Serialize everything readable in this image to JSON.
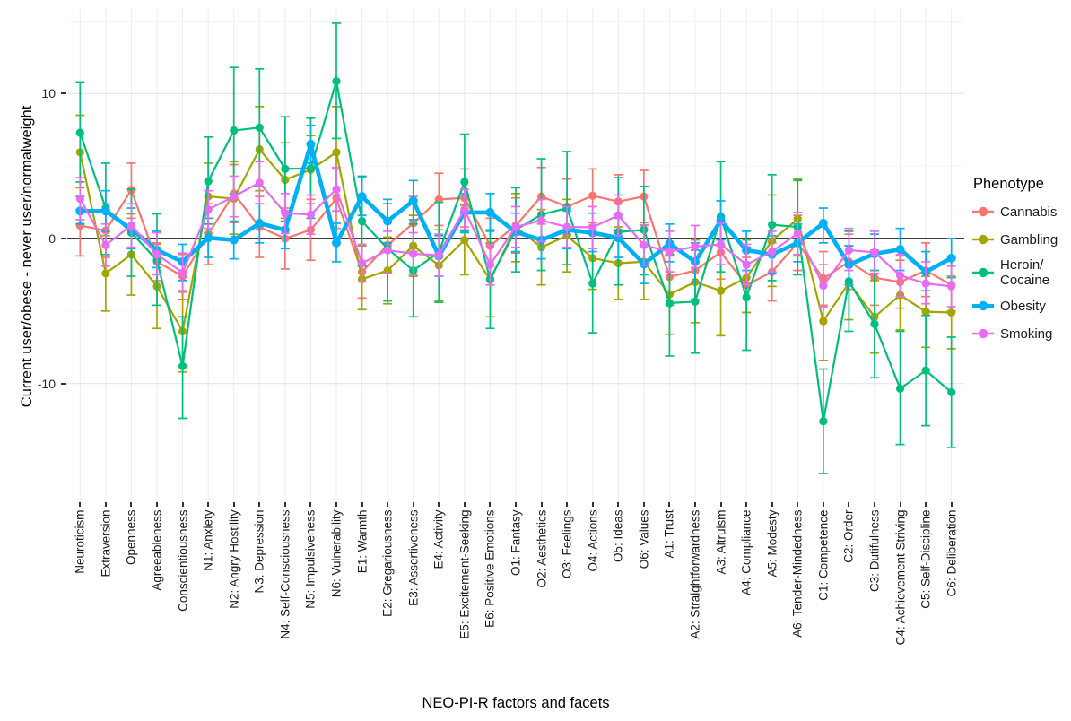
{
  "figure": {
    "y_axis": {
      "title": "Current user/obese - never user/normalweight",
      "ticks": [
        10,
        0,
        -10
      ],
      "minor_gridlines": [
        15,
        5,
        -5,
        -15
      ],
      "range": [
        -18.2,
        15.8
      ]
    },
    "x_axis": {
      "title": "NEO-PI-R factors and facets"
    },
    "legend": {
      "title": "Phenotype"
    },
    "zero_line_color": "#000000"
  },
  "chart_data": {
    "type": "line",
    "error_bars": true,
    "title": "",
    "xlabel": "NEO-PI-R factors and facets",
    "ylabel": "Current user/obese - never user/normalweight",
    "ylim": [
      -18.2,
      15.8
    ],
    "grid": true,
    "legend_position": "right",
    "categories": [
      "Neuroticism",
      "Extraversion",
      "Openness",
      "Agreeableness",
      "Conscientiousness",
      "N1: Anxiety",
      "N2: Angry Hostility",
      "N3: Depression",
      "N4: Self-Consciousness",
      "N5: Impulsiveness",
      "N6: Vulnerability",
      "E1: Warmth",
      "E2: Gregariousness",
      "E3: Assertiveness",
      "E4: Activity",
      "E5: Excitement-Seeking",
      "E6: Positive Emotions",
      "O1: Fantasy",
      "O2: Aesthetics",
      "O3: Feelings",
      "O4: Actions",
      "O5: Ideas",
      "O6: Values",
      "A1: Trust",
      "A2: Straightforwardness",
      "A3: Altruism",
      "A4: Compliance",
      "A5: Modesty",
      "A6: Tender-Mindedness",
      "C1: Competence",
      "C2: Order",
      "C3: Dutifulness",
      "C4: Achievement Striving",
      "C5: Self-Discipline",
      "C6: Deliberation"
    ],
    "series": [
      {
        "name": "Cannabis",
        "label_lines": [
          "Cannabis"
        ],
        "color": "#F8766D",
        "thick": false,
        "values": [
          0.9,
          0.55,
          3.35,
          -1.6,
          -2.6,
          0.3,
          3.1,
          0.8,
          0.0,
          0.6,
          2.75,
          -2.3,
          -0.45,
          1.05,
          2.7,
          2.8,
          -0.5,
          0.9,
          2.9,
          2.2,
          2.95,
          2.55,
          2.9,
          -2.65,
          -2.2,
          -0.95,
          -3.2,
          -2.3,
          -0.3,
          -2.75,
          -1.6,
          -2.7,
          -3.0,
          -2.2,
          -3.2
        ],
        "ci_low": [
          -1.2,
          -1.3,
          1.4,
          -2.9,
          -4.2,
          -1.8,
          1.1,
          -1.3,
          -2.1,
          -1.5,
          0.7,
          -4.1,
          -2.3,
          -0.9,
          0.9,
          0.8,
          -2.4,
          -1.0,
          1.0,
          0.3,
          1.1,
          0.6,
          1.1,
          -4.6,
          -4.2,
          -2.8,
          -5.1,
          -4.3,
          -2.2,
          -4.6,
          -3.5,
          -4.6,
          -4.8,
          -4.0,
          -5.0
        ],
        "ci_high": [
          2.0,
          2.4,
          5.2,
          -0.3,
          -1.1,
          2.4,
          5.1,
          2.9,
          2.1,
          2.7,
          4.8,
          -0.5,
          1.4,
          2.9,
          4.5,
          4.8,
          1.4,
          2.8,
          4.9,
          4.1,
          4.8,
          4.4,
          4.7,
          -0.7,
          -0.3,
          1.0,
          -1.3,
          -0.3,
          1.6,
          -0.9,
          0.3,
          -0.8,
          -1.2,
          -0.3,
          -1.4
        ]
      },
      {
        "name": "Gambling",
        "label_lines": [
          "Gambling"
        ],
        "color": "#A3A500",
        "thick": false,
        "values": [
          5.95,
          -2.4,
          -1.1,
          -3.3,
          -6.4,
          2.9,
          2.75,
          6.15,
          4.05,
          4.75,
          5.95,
          -2.8,
          -2.2,
          -0.5,
          -1.85,
          -0.1,
          -2.85,
          0.8,
          -0.6,
          0.2,
          -1.35,
          -1.7,
          -1.6,
          -3.85,
          -3.0,
          -3.6,
          -2.7,
          -0.15,
          1.35,
          -5.7,
          -3.05,
          -5.4,
          -3.9,
          -5.05,
          -5.1
        ],
        "ci_low": [
          3.5,
          -5.0,
          -3.9,
          -6.2,
          -9.2,
          0.4,
          0.3,
          3.3,
          1.4,
          2.4,
          3.0,
          -4.9,
          -4.5,
          -2.6,
          -4.3,
          -2.5,
          -5.4,
          -1.6,
          -3.2,
          -2.3,
          -3.5,
          -4.2,
          -4.2,
          -6.6,
          -5.8,
          -6.7,
          -5.1,
          -3.3,
          -1.2,
          -8.4,
          -5.6,
          -7.9,
          -6.3,
          -7.5,
          -7.6
        ],
        "ci_high": [
          8.5,
          0.2,
          1.7,
          -0.4,
          -3.6,
          5.2,
          5.3,
          9.1,
          6.6,
          7.1,
          9.1,
          -0.5,
          0.1,
          1.6,
          0.6,
          2.3,
          -0.3,
          3.1,
          2.0,
          2.7,
          0.9,
          0.8,
          0.9,
          -1.2,
          -0.1,
          -0.5,
          -0.1,
          3.0,
          4.1,
          -3.0,
          -0.5,
          -2.9,
          -1.5,
          -2.6,
          -2.6
        ]
      },
      {
        "name": "Heroin/Cocaine",
        "label_lines": [
          "Heroin/",
          "Cocaine"
        ],
        "color": "#00BF7D",
        "thick": false,
        "values": [
          7.3,
          2.1,
          0.4,
          -1.5,
          -8.8,
          3.95,
          7.45,
          7.65,
          4.8,
          4.85,
          10.85,
          1.2,
          -0.7,
          -2.2,
          -0.95,
          3.9,
          -2.8,
          0.6,
          1.65,
          2.1,
          -3.1,
          0.45,
          0.6,
          -4.45,
          -4.35,
          1.5,
          -4.05,
          0.95,
          0.8,
          -12.6,
          -2.95,
          -5.9,
          -10.35,
          -9.1,
          -10.6
        ],
        "ci_low": [
          3.9,
          -1.1,
          -2.6,
          -4.6,
          -12.4,
          1.0,
          3.1,
          3.6,
          1.2,
          1.4,
          6.9,
          -1.9,
          -4.3,
          -5.4,
          -4.4,
          0.5,
          -6.2,
          -2.3,
          -2.2,
          -1.8,
          -6.5,
          -3.2,
          -2.5,
          -8.1,
          -7.9,
          -2.3,
          -7.7,
          -2.9,
          -2.5,
          -16.2,
          -6.4,
          -9.6,
          -14.2,
          -12.9,
          -14.4
        ],
        "ci_high": [
          10.8,
          5.2,
          3.4,
          1.7,
          -5.4,
          7.0,
          11.8,
          11.7,
          8.4,
          8.3,
          14.85,
          4.3,
          2.4,
          1.0,
          2.5,
          7.2,
          0.6,
          3.5,
          5.5,
          6.0,
          0.4,
          4.2,
          3.6,
          -1.1,
          -0.8,
          5.3,
          -0.6,
          4.4,
          4.0,
          -9.0,
          0.5,
          -2.2,
          -6.4,
          -5.3,
          -6.8
        ]
      },
      {
        "name": "Obesity",
        "label_lines": [
          "Obesity"
        ],
        "color": "#00B0F6",
        "thick": true,
        "values": [
          1.9,
          1.9,
          0.65,
          -0.8,
          -1.6,
          0.05,
          -0.1,
          1.05,
          0.6,
          6.5,
          -0.3,
          2.9,
          1.2,
          2.6,
          -1.2,
          1.8,
          1.8,
          0.45,
          -0.1,
          0.6,
          0.4,
          0.05,
          -1.75,
          -0.35,
          -1.6,
          1.25,
          -0.8,
          -1.1,
          -0.3,
          1.05,
          -1.8,
          -1.05,
          -0.75,
          -2.3,
          -1.35
        ],
        "ci_low": [
          1.0,
          0.5,
          -0.7,
          -2.0,
          -2.9,
          -1.3,
          -1.4,
          -0.3,
          -0.7,
          5.2,
          -1.6,
          1.6,
          -0.3,
          1.3,
          -2.6,
          0.4,
          0.5,
          -0.9,
          -1.4,
          -0.7,
          -0.9,
          -1.3,
          -3.1,
          -1.6,
          -3.0,
          -0.1,
          -2.2,
          -2.4,
          -1.6,
          -0.3,
          -3.2,
          -2.4,
          -2.2,
          -3.6,
          -2.7
        ],
        "ci_high": [
          2.9,
          3.3,
          2.1,
          0.5,
          -0.4,
          1.4,
          1.2,
          2.4,
          1.9,
          7.8,
          1.05,
          4.2,
          2.7,
          4.0,
          0.2,
          3.1,
          3.1,
          1.75,
          1.25,
          1.9,
          1.75,
          1.4,
          -0.4,
          1.0,
          -0.3,
          2.6,
          0.5,
          0.2,
          1.0,
          2.1,
          -0.5,
          0.3,
          0.7,
          -0.9,
          0.0
        ]
      },
      {
        "name": "Smoking",
        "label_lines": [
          "Smoking"
        ],
        "color": "#E76BF3",
        "thick": false,
        "values": [
          2.75,
          -0.45,
          0.9,
          -1.1,
          -2.35,
          2.0,
          2.9,
          3.85,
          1.75,
          1.65,
          3.4,
          -1.7,
          -0.8,
          -1.05,
          -1.15,
          2.0,
          -1.8,
          0.8,
          1.25,
          0.8,
          0.78,
          1.6,
          -0.45,
          -0.9,
          -0.55,
          -0.4,
          -1.8,
          -0.9,
          0.35,
          -3.25,
          -0.8,
          -0.95,
          -2.55,
          -3.1,
          -3.3
        ],
        "ci_low": [
          1.3,
          -1.9,
          -0.6,
          -2.5,
          -3.7,
          0.7,
          1.5,
          2.4,
          0.35,
          0.3,
          1.9,
          -3.0,
          -2.4,
          -2.5,
          -2.6,
          0.6,
          -3.2,
          -0.6,
          -0.2,
          -0.6,
          -0.7,
          0.2,
          -1.85,
          -2.3,
          -2.0,
          -1.8,
          -3.2,
          -2.3,
          -1.1,
          -4.7,
          -2.2,
          -2.4,
          -4.0,
          -4.5,
          -4.7
        ],
        "ci_high": [
          4.2,
          1.0,
          2.4,
          0.4,
          -1.0,
          3.3,
          4.3,
          5.3,
          3.1,
          3.0,
          4.9,
          -0.4,
          0.5,
          0.4,
          0.3,
          3.4,
          -0.4,
          2.2,
          2.7,
          2.2,
          2.2,
          3.0,
          0.95,
          0.5,
          0.9,
          1.05,
          -0.4,
          0.5,
          1.8,
          -1.8,
          0.7,
          0.5,
          -1.1,
          -1.6,
          -1.9
        ]
      }
    ]
  }
}
